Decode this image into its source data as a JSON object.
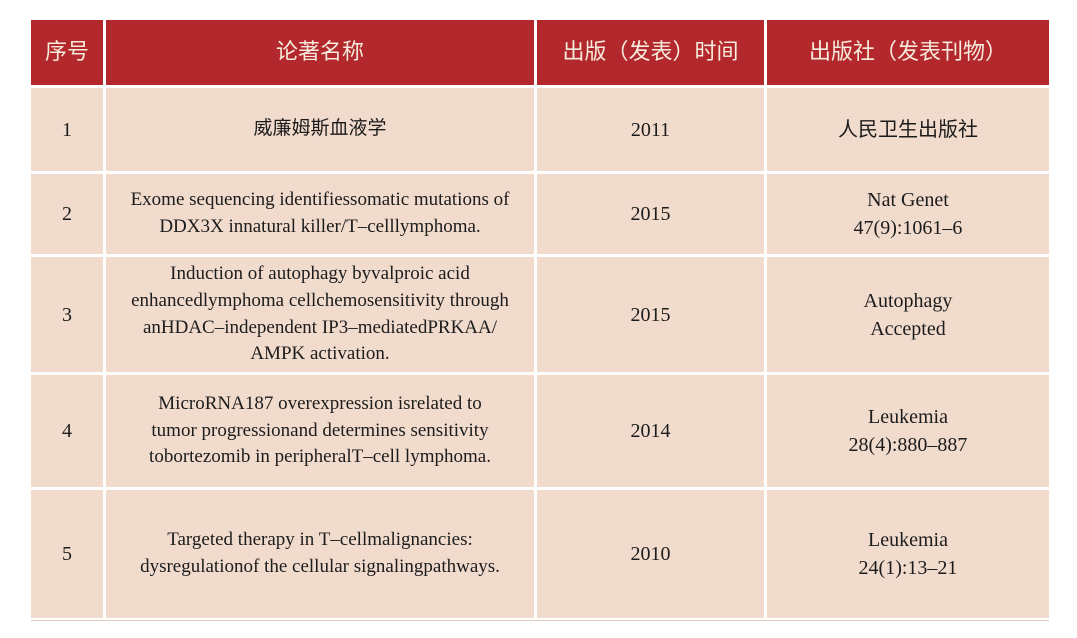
{
  "table": {
    "headers": {
      "index": "序号",
      "title": "论著名称",
      "time": "出版（发表）时间",
      "publisher": "出版社（发表刊物）"
    },
    "rows": [
      {
        "index": "1",
        "title": [
          "威廉姆斯血液学"
        ],
        "year": "2011",
        "publisher": [
          "人民卫生出版社"
        ]
      },
      {
        "index": "2",
        "title": [
          "Exome sequencing identifiessomatic mutations of",
          "DDX3X innatural killer/T–celllymphoma."
        ],
        "year": "2015",
        "publisher": [
          "Nat Genet",
          "47(9):1061–6"
        ]
      },
      {
        "index": "3",
        "title": [
          "Induction of autophagy byvalproic acid",
          "enhancedlymphoma cellchemosensitivity through",
          "anHDAC–independent IP3–mediatedPRKAA/",
          "AMPK activation."
        ],
        "year": "2015",
        "publisher": [
          "Autophagy",
          "Accepted"
        ]
      },
      {
        "index": "4",
        "title": [
          "MicroRNA187 overexpression isrelated to",
          "tumor progressionand determines sensitivity",
          "tobortezomib in peripheralT–cell lymphoma."
        ],
        "year": "2014",
        "publisher": [
          "Leukemia",
          "28(4):880–887"
        ]
      },
      {
        "index": "5",
        "title": [
          "Targeted therapy in T–cellmalignancies:",
          "dysregulationof the cellular signalingpathways."
        ],
        "year": "2010",
        "publisher": [
          "Leukemia",
          "24(1):13–21"
        ]
      }
    ]
  },
  "colors": {
    "header_bg": "#B3282D",
    "header_text": "#F6EBDC",
    "cell_bg": "#F1DBCD",
    "body_text": "#1C1C1C",
    "page_bg": "#FFFFFF"
  }
}
